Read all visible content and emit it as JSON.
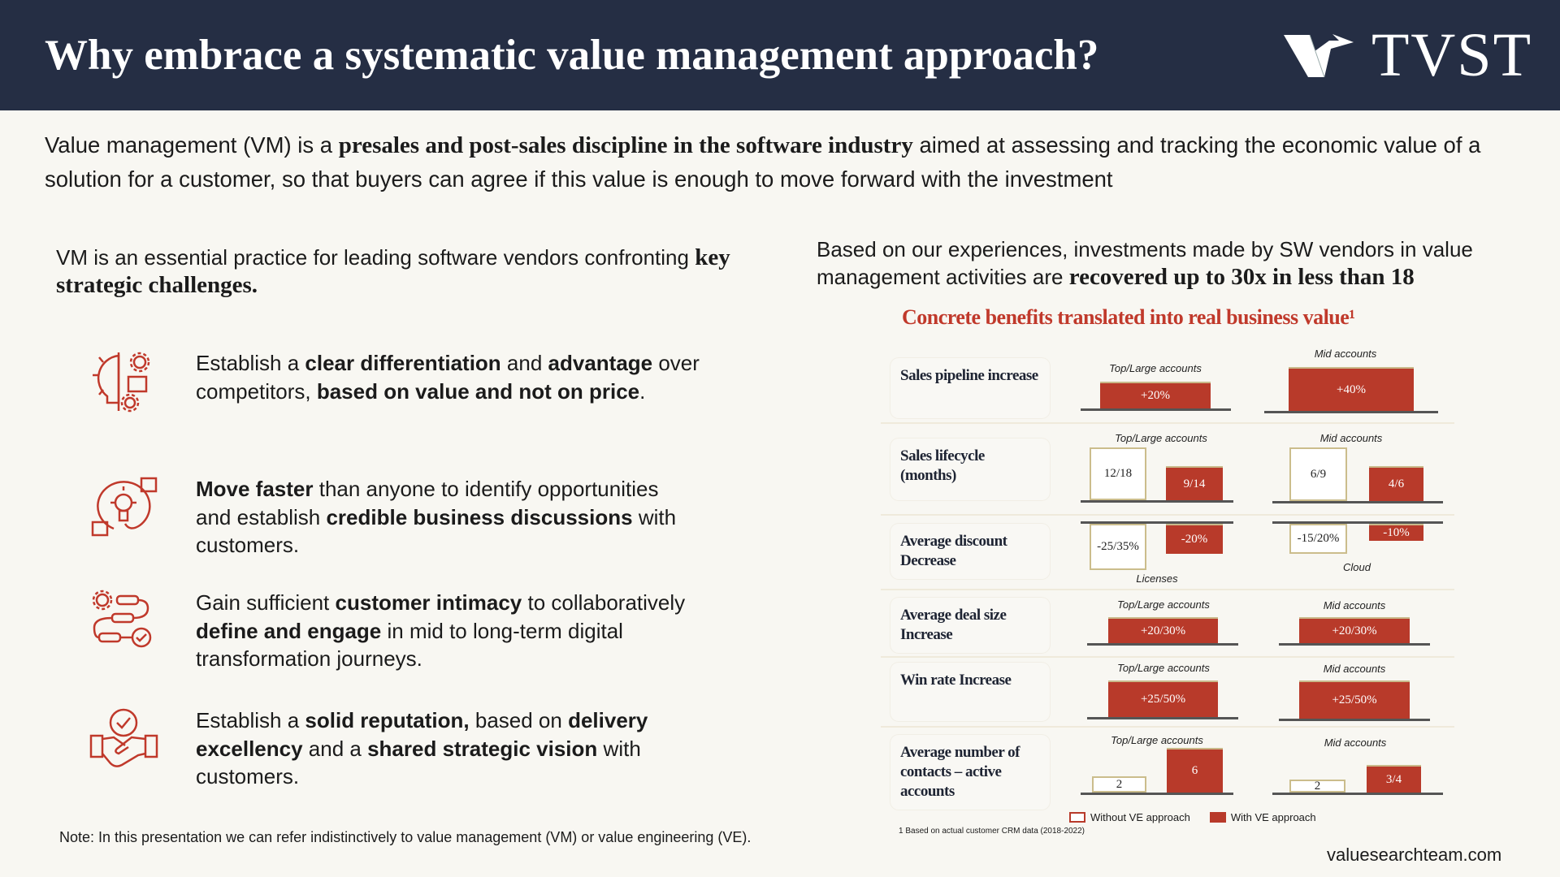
{
  "header": {
    "title": "Why embrace a systematic value management approach?",
    "logo": "TVST",
    "bg": "#252e44"
  },
  "intro": {
    "pre": "Value management (VM) is a ",
    "bold": "presales and post-sales discipline in the software industry",
    "post": " aimed at assessing and tracking the economic value of a solution for a customer, so that buyers can agree if this value is enough to move forward with the investment"
  },
  "left": {
    "heading_pre": "VM is an essential practice for leading software vendors confronting ",
    "heading_bold": "key strategic challenges.",
    "bullets": [
      {
        "icon": "differentiation-icon",
        "parts": [
          [
            "Establish a ",
            0
          ],
          [
            "clear differentiation",
            1
          ],
          [
            " and ",
            0
          ],
          [
            "advantage",
            1
          ],
          [
            " over competitors, ",
            0
          ],
          [
            "based on value and not on price",
            1
          ],
          [
            ".",
            0
          ]
        ]
      },
      {
        "icon": "lightbulb-ideas-icon",
        "parts": [
          [
            "Move faster",
            1
          ],
          [
            " than anyone to identify opportunities and establish ",
            0
          ],
          [
            "credible business discussions",
            1
          ],
          [
            " with  customers.",
            0
          ]
        ]
      },
      {
        "icon": "process-journey-icon",
        "parts": [
          [
            "Gain sufficient ",
            0
          ],
          [
            "customer intimacy",
            1
          ],
          [
            " to collaboratively ",
            0
          ],
          [
            "define and engage",
            1
          ],
          [
            " in mid to long-term digital transformation journeys.",
            0
          ]
        ]
      },
      {
        "icon": "handshake-check-icon",
        "parts": [
          [
            "Establish a ",
            0
          ],
          [
            "solid reputation,",
            1
          ],
          [
            " based on ",
            0
          ],
          [
            "delivery excellency",
            1
          ],
          [
            " and a ",
            0
          ],
          [
            "shared strategic vision",
            1
          ],
          [
            " with customers.",
            0
          ]
        ]
      }
    ],
    "note": "Note: In this presentation we can refer indistinctively to value management (VM) or value engineering (VE)."
  },
  "right": {
    "pre": "Based on our experiences, investments made by SW vendors in value management activities are ",
    "bold": "recovered up to 30x in less than 18"
  },
  "chart_data": {
    "type": "table",
    "title": "Concrete benefits translated into real business value¹",
    "legend": {
      "without": "Without VE approach",
      "with": "With VE approach"
    },
    "colors": {
      "with": "#b83a2a",
      "without": "#ffffff",
      "accent": "#c0392b"
    },
    "rows": [
      {
        "label": "Sales pipeline increase",
        "groups": [
          {
            "caption": "Top/Large accounts",
            "with": "+20%"
          },
          {
            "caption": "Mid accounts",
            "with": "+40%"
          }
        ]
      },
      {
        "label": "Sales lifecycle (months)",
        "groups": [
          {
            "caption": "Top/Large accounts",
            "without": "12/18",
            "with": "9/14"
          },
          {
            "caption": "Mid accounts",
            "without": "6/9",
            "with": "4/6"
          }
        ]
      },
      {
        "label": "Average discount Decrease",
        "groups": [
          {
            "caption": "Licenses",
            "without": "-25/35%",
            "with": "-20%"
          },
          {
            "caption": "Cloud",
            "without": "-15/20%",
            "with": "-10%"
          }
        ]
      },
      {
        "label": "Average deal size Increase",
        "groups": [
          {
            "caption": "Top/Large accounts",
            "with": "+20/30%"
          },
          {
            "caption": "Mid accounts",
            "with": "+20/30%"
          }
        ]
      },
      {
        "label": "Win rate Increase",
        "groups": [
          {
            "caption": "Top/Large accounts",
            "with": "+25/50%"
          },
          {
            "caption": "Mid accounts",
            "with": "+25/50%"
          }
        ]
      },
      {
        "label": "Average number of contacts – active accounts",
        "groups": [
          {
            "caption": "Top/Large accounts",
            "without": "2",
            "with": "6"
          },
          {
            "caption": "Mid accounts",
            "without": "2",
            "with": "3/4"
          }
        ]
      }
    ],
    "footnote": "1 Based on actual customer CRM data (2018-2022)"
  },
  "footer": {
    "site": "valuesearchteam.com"
  }
}
